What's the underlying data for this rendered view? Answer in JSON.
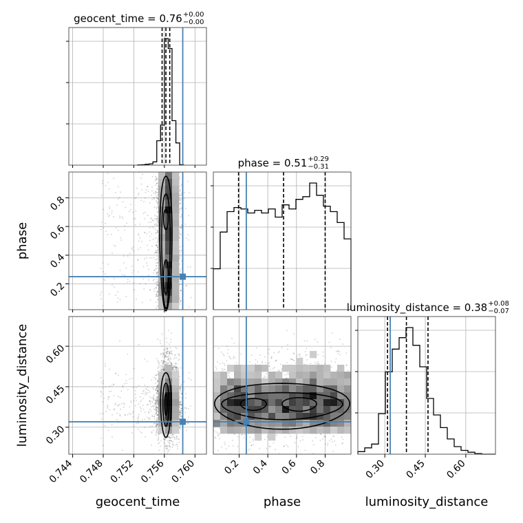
{
  "chart_data": {
    "type": "corner",
    "parameters": [
      "geocent_time",
      "phase",
      "luminosity_distance"
    ],
    "axis_labels": {
      "geocent_time": "geocent_time",
      "phase": "phase",
      "luminosity_distance": "luminosity_distance"
    },
    "ranges": {
      "geocent_time": [
        0.7435,
        0.7615
      ],
      "phase": [
        0.02,
        0.98
      ],
      "luminosity_distance": [
        0.2,
        0.71
      ]
    },
    "ticks": {
      "geocent_time": [
        0.744,
        0.748,
        0.752,
        0.756,
        0.76
      ],
      "phase": [
        0.2,
        0.4,
        0.6,
        0.8
      ],
      "luminosity_distance": [
        0.3,
        0.45,
        0.6
      ]
    },
    "tick_labels": {
      "geocent_time": [
        "0.744",
        "0.748",
        "0.752",
        "0.756",
        "0.760"
      ],
      "phase": [
        "0.2",
        "0.4",
        "0.6",
        "0.8"
      ],
      "luminosity_distance": [
        "0.30",
        "0.45",
        "0.60"
      ]
    },
    "titles": [
      {
        "param": "geocent_time",
        "text": "geocent_time = 0.76",
        "plus": "+0.00",
        "minus": "−0.00"
      },
      {
        "param": "phase",
        "text": "phase = 0.51",
        "plus": "+0.29",
        "minus": "−0.31"
      },
      {
        "param": "luminosity_distance",
        "text": "luminosity_distance = 0.38",
        "plus": "+0.08",
        "minus": "−0.07"
      }
    ],
    "quantiles": {
      "geocent_time": [
        0.7557,
        0.7562,
        0.7567
      ],
      "phase": [
        0.196,
        0.51,
        0.8
      ],
      "luminosity_distance": [
        0.31,
        0.38,
        0.46
      ]
    },
    "truths": {
      "geocent_time": 0.7584,
      "phase": 0.25,
      "luminosity_distance": 0.32
    },
    "histograms": {
      "geocent_time": {
        "edges": [
          0.7525,
          0.753,
          0.7535,
          0.754,
          0.7545,
          0.755,
          0.7555,
          0.756,
          0.7565,
          0.757,
          0.7575,
          0.758,
          0.7585
        ],
        "counts": [
          1,
          2,
          4,
          6,
          15,
          110,
          180,
          570,
          525,
          200,
          100,
          2
        ]
      },
      "phase": {
        "edges": [
          0.02,
          0.068,
          0.116,
          0.164,
          0.212,
          0.26,
          0.308,
          0.356,
          0.404,
          0.452,
          0.5,
          0.548,
          0.596,
          0.644,
          0.692,
          0.74,
          0.788,
          0.836,
          0.884,
          0.932,
          0.98
        ],
        "counts": [
          0.3,
          0.57,
          0.72,
          0.75,
          0.74,
          0.71,
          0.73,
          0.71,
          0.74,
          0.68,
          0.77,
          0.74,
          0.81,
          0.83,
          0.93,
          0.84,
          0.76,
          0.72,
          0.64,
          0.52
        ]
      },
      "luminosity_distance": {
        "edges": [
          0.2,
          0.2255,
          0.251,
          0.2765,
          0.302,
          0.3275,
          0.353,
          0.3785,
          0.404,
          0.4295,
          0.455,
          0.4805,
          0.506,
          0.5315,
          0.557,
          0.5825,
          0.608,
          0.6335,
          0.659,
          0.6845,
          0.71
        ],
        "counts": [
          0.02,
          0.05,
          0.08,
          0.32,
          0.65,
          0.83,
          0.92,
          1.0,
          0.86,
          0.69,
          0.44,
          0.31,
          0.21,
          0.12,
          0.06,
          0.03,
          0.015,
          0.005,
          0.0,
          0.0
        ]
      }
    },
    "grid": true
  }
}
